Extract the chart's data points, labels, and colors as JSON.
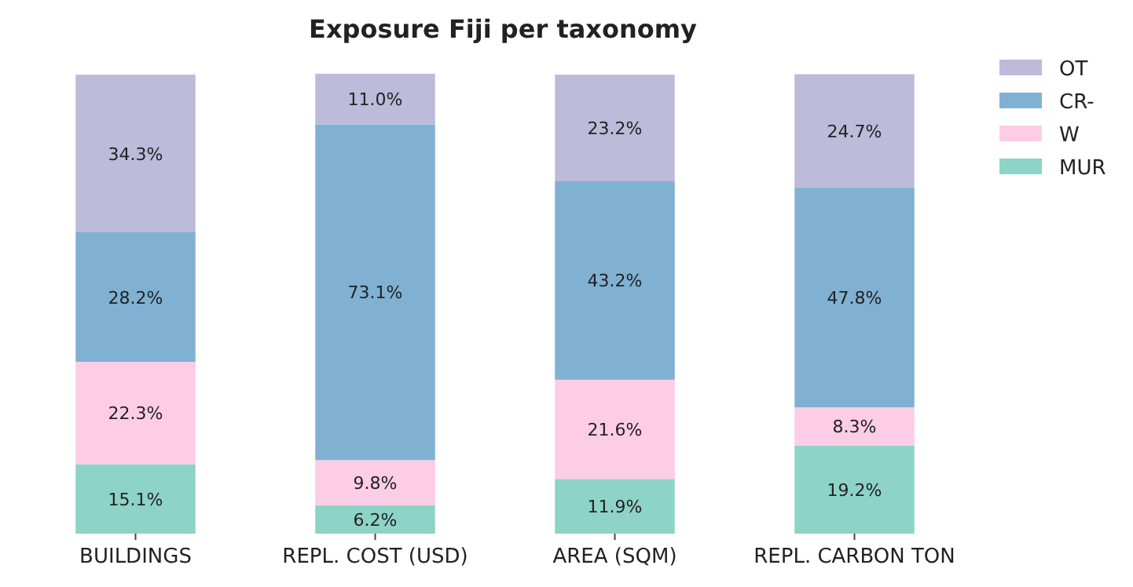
{
  "chart_data": {
    "type": "bar",
    "title": "Exposure Fiji per taxonomy",
    "categories": [
      "BUILDINGS",
      "REPL. COST (USD)",
      "AREA (SQM)",
      "REPL. CARBON TON"
    ],
    "stacked": true,
    "legend": "top right",
    "series": [
      {
        "name": "MUR",
        "color": "#8dd3c7",
        "values": [
          15.1,
          6.2,
          11.9,
          19.2
        ],
        "value_labels": [
          "15.1%",
          "6.2%",
          "11.9%",
          "19.2%"
        ]
      },
      {
        "name": "W",
        "color": "#fccde5",
        "values": [
          22.3,
          9.8,
          21.6,
          8.3
        ],
        "value_labels": [
          "22.3%",
          "9.8%",
          "21.6%",
          "8.3%"
        ]
      },
      {
        "name": "CR-",
        "color": "#80b1d3",
        "values": [
          28.2,
          73.1,
          43.2,
          47.8
        ],
        "value_labels": [
          "28.2%",
          "73.1%",
          "43.2%",
          "47.8%"
        ]
      },
      {
        "name": "OT",
        "color": "#bebada",
        "values": [
          34.3,
          11.0,
          23.2,
          24.7
        ],
        "value_labels": [
          "34.3%",
          "11.0%",
          "23.2%",
          "24.7%"
        ]
      }
    ]
  }
}
